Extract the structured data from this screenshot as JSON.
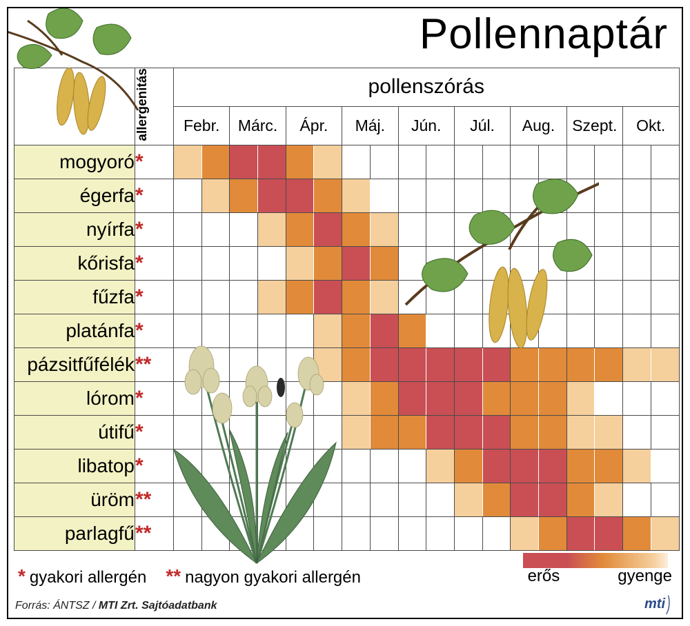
{
  "title": "Pollennaptár",
  "header": {
    "allergenicity": "allergenitás",
    "spread": "pollenszórás"
  },
  "months": [
    "Febr.",
    "Márc.",
    "Ápr.",
    "Máj.",
    "Jún.",
    "Júl.",
    "Aug.",
    "Szept.",
    "Okt."
  ],
  "plants": [
    {
      "name": "mogyoró",
      "mark": "*"
    },
    {
      "name": "égerfa",
      "mark": "*"
    },
    {
      "name": "nyírfa",
      "mark": "*"
    },
    {
      "name": "kőrisfa",
      "mark": "*"
    },
    {
      "name": "fűzfa",
      "mark": "*"
    },
    {
      "name": "platánfa",
      "mark": "*"
    },
    {
      "name": "pázsitfűfélék",
      "mark": "**"
    },
    {
      "name": "lórom",
      "mark": "*"
    },
    {
      "name": "útifű",
      "mark": "*"
    },
    {
      "name": "libatop",
      "mark": "*"
    },
    {
      "name": "üröm",
      "mark": "**"
    },
    {
      "name": "parlagfű",
      "mark": "**"
    }
  ],
  "intensity_comment": "each row = 18 half-month slots (Feb..Oct ×2). 0=none 1=weak 2=medium 3=strong",
  "intensity": [
    [
      1,
      2,
      3,
      3,
      2,
      1,
      0,
      0,
      0,
      0,
      0,
      0,
      0,
      0,
      0,
      0,
      0,
      0
    ],
    [
      0,
      1,
      2,
      3,
      3,
      2,
      1,
      0,
      0,
      0,
      0,
      0,
      0,
      0,
      0,
      0,
      0,
      0
    ],
    [
      0,
      0,
      0,
      1,
      2,
      3,
      2,
      1,
      0,
      0,
      0,
      0,
      0,
      0,
      0,
      0,
      0,
      0
    ],
    [
      0,
      0,
      0,
      0,
      1,
      2,
      3,
      2,
      0,
      0,
      0,
      0,
      0,
      0,
      0,
      0,
      0,
      0
    ],
    [
      0,
      0,
      0,
      1,
      2,
      3,
      2,
      1,
      0,
      0,
      0,
      0,
      0,
      0,
      0,
      0,
      0,
      0
    ],
    [
      0,
      0,
      0,
      0,
      0,
      1,
      2,
      3,
      2,
      0,
      0,
      0,
      0,
      0,
      0,
      0,
      0,
      0
    ],
    [
      0,
      0,
      0,
      0,
      0,
      1,
      2,
      3,
      3,
      3,
      3,
      3,
      2,
      2,
      2,
      2,
      1,
      1
    ],
    [
      0,
      0,
      0,
      0,
      0,
      0,
      1,
      2,
      3,
      3,
      3,
      2,
      2,
      2,
      1,
      0,
      0,
      0
    ],
    [
      0,
      0,
      0,
      0,
      0,
      0,
      1,
      2,
      2,
      3,
      3,
      3,
      2,
      2,
      1,
      1,
      0,
      0
    ],
    [
      0,
      0,
      0,
      0,
      0,
      0,
      0,
      0,
      0,
      1,
      2,
      3,
      3,
      3,
      2,
      2,
      1,
      0
    ],
    [
      0,
      0,
      0,
      0,
      0,
      0,
      0,
      0,
      0,
      0,
      1,
      2,
      3,
      3,
      2,
      1,
      0,
      0
    ],
    [
      0,
      0,
      0,
      0,
      0,
      0,
      0,
      0,
      0,
      0,
      0,
      0,
      1,
      2,
      3,
      3,
      2,
      1
    ]
  ],
  "colors": {
    "strong": "#c94f55",
    "medium": "#e18a39",
    "weak": "#f5cf9c",
    "plant_bg": "#f3f2c4",
    "asterisk": "#c22a2a",
    "grid": "#4a4a4a",
    "background": "#ffffff"
  },
  "legend": {
    "single": "gyakori allergén",
    "double": "nagyon gyakori allergén",
    "strong": "erős",
    "weak": "gyenge"
  },
  "source": {
    "prefix": "Forrás: ",
    "org": "ÁNTSZ",
    "sep": " / ",
    "bank": "MTI Zrt. Sajtóadatbank"
  },
  "logo": "mti"
}
